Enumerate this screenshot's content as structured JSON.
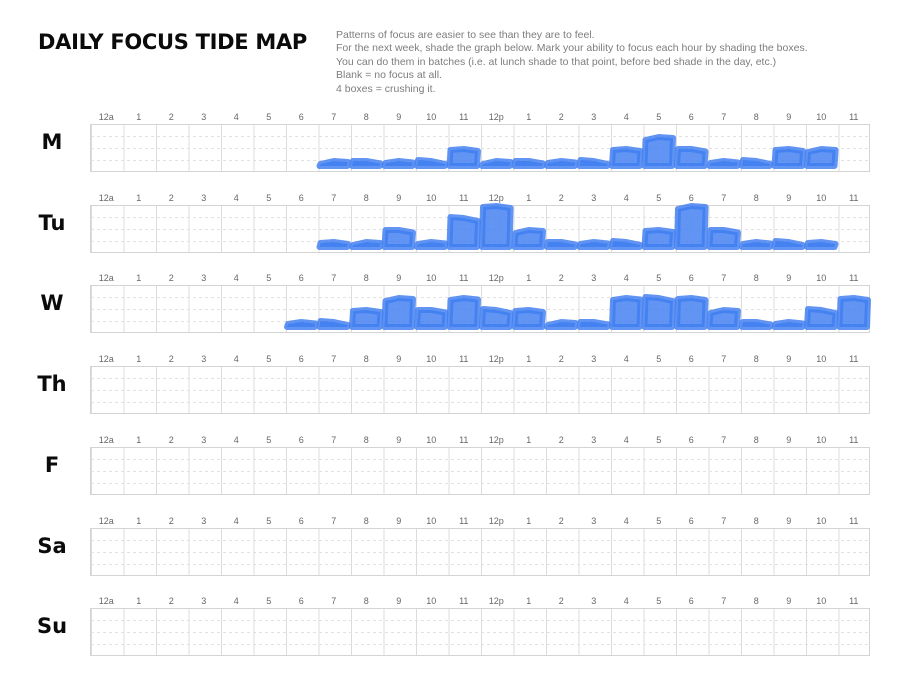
{
  "title": "DAILY FOCUS TIDE MAP",
  "instructions": [
    "Patterns of focus are easier to see than they are to feel.",
    "For the next week, shade the graph below. Mark your ability to focus each hour by shading the boxes.",
    "You can do them in batches (i.e. at lunch shade to that point, before bed shade in the day, etc.)",
    "Blank = no focus at all.",
    "4 boxes = crushing it."
  ],
  "hours": [
    "12a",
    "1",
    "2",
    "3",
    "4",
    "5",
    "6",
    "7",
    "8",
    "9",
    "10",
    "11",
    "12p",
    "1",
    "2",
    "3",
    "4",
    "5",
    "6",
    "7",
    "8",
    "9",
    "10",
    "11"
  ],
  "days": [
    {
      "label": "M",
      "focus": [
        0,
        0,
        0,
        0,
        0,
        0,
        0,
        1,
        1,
        1,
        1,
        2,
        1,
        1,
        1,
        1,
        2,
        3,
        2,
        1,
        1,
        2,
        2,
        0
      ]
    },
    {
      "label": "Tu",
      "focus": [
        0,
        0,
        0,
        0,
        0,
        0,
        0,
        1,
        1,
        2,
        1,
        3,
        4,
        2,
        1,
        1,
        1,
        2,
        4,
        2,
        1,
        1,
        1,
        0
      ]
    },
    {
      "label": "W",
      "focus": [
        0,
        0,
        0,
        0,
        0,
        0,
        1,
        1,
        2,
        3,
        2,
        3,
        2,
        2,
        1,
        1,
        3,
        3,
        3,
        2,
        1,
        1,
        2,
        3
      ]
    },
    {
      "label": "Th",
      "focus": [
        0,
        0,
        0,
        0,
        0,
        0,
        0,
        0,
        0,
        0,
        0,
        0,
        0,
        0,
        0,
        0,
        0,
        0,
        0,
        0,
        0,
        0,
        0,
        0
      ]
    },
    {
      "label": "F",
      "focus": [
        0,
        0,
        0,
        0,
        0,
        0,
        0,
        0,
        0,
        0,
        0,
        0,
        0,
        0,
        0,
        0,
        0,
        0,
        0,
        0,
        0,
        0,
        0,
        0
      ]
    },
    {
      "label": "Sa",
      "focus": [
        0,
        0,
        0,
        0,
        0,
        0,
        0,
        0,
        0,
        0,
        0,
        0,
        0,
        0,
        0,
        0,
        0,
        0,
        0,
        0,
        0,
        0,
        0,
        0
      ]
    },
    {
      "label": "Su",
      "focus": [
        0,
        0,
        0,
        0,
        0,
        0,
        0,
        0,
        0,
        0,
        0,
        0,
        0,
        0,
        0,
        0,
        0,
        0,
        0,
        0,
        0,
        0,
        0,
        0
      ]
    }
  ],
  "colors": {
    "shade": "#3f7ef0"
  }
}
